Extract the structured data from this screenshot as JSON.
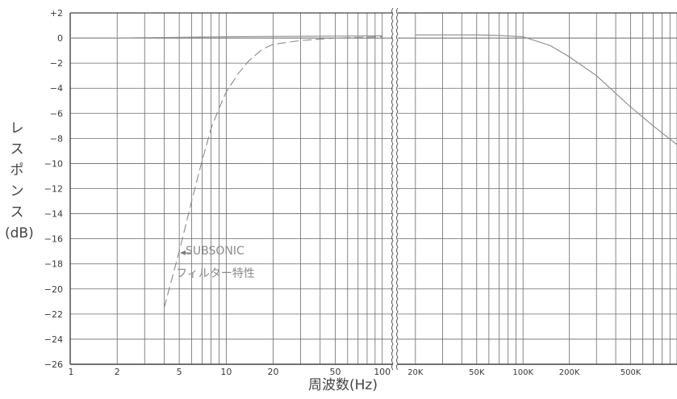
{
  "chart_data": {
    "type": "line",
    "ylabel": "レスポンス(dB)",
    "ylabel_lines": [
      "レ",
      "ス",
      "ポ",
      "ン",
      "ス",
      "(dB)"
    ],
    "xlabel": "周波数(Hz)",
    "x_scale": "log (broken axis: 1–100 Hz, then 20K–1M Hz)",
    "ylim": [
      -26,
      2
    ],
    "grid": true,
    "yticks": [
      2,
      0,
      -2,
      -4,
      -6,
      -8,
      -10,
      -12,
      -14,
      -16,
      -18,
      -20,
      -22,
      -24,
      -26
    ],
    "ytick_labels": [
      "+2",
      "0",
      "−2",
      "−4",
      "−6",
      "−8",
      "−10",
      "−12",
      "−14",
      "−16",
      "−18",
      "−20",
      "−22",
      "−24",
      "−26"
    ],
    "xticks_low": [
      1,
      2,
      5,
      10,
      20,
      50,
      100
    ],
    "xtick_labels_low": [
      "1",
      "2",
      "5",
      "10",
      "20",
      "50",
      "100"
    ],
    "xticks_high": [
      20000,
      50000,
      100000,
      200000,
      500000
    ],
    "xtick_labels_high": [
      "20K",
      "50K",
      "100K",
      "200K",
      "500K"
    ],
    "annotation": {
      "line1": "SUBSONIC",
      "line2": "フィルター特性"
    },
    "series": [
      {
        "style": "solid",
        "x": [
          1,
          2,
          5,
          10,
          20,
          50,
          100,
          20000,
          50000,
          70000,
          100000,
          150000,
          200000,
          300000,
          500000,
          700000,
          1000000
        ],
        "y": [
          0,
          0,
          0.05,
          0.1,
          0.12,
          0.15,
          0.18,
          0.25,
          0.25,
          0.2,
          0.1,
          -0.6,
          -1.5,
          -3,
          -5.5,
          -7,
          -8.5
        ]
      },
      {
        "style": "dashed",
        "x": [
          4,
          5,
          6,
          7,
          8,
          9,
          10,
          12,
          14,
          17,
          20,
          30,
          50,
          100
        ],
        "y": [
          -21.5,
          -17,
          -13,
          -9.8,
          -7.2,
          -5.6,
          -4.3,
          -2.8,
          -1.8,
          -0.9,
          -0.5,
          -0.2,
          0,
          0.1
        ]
      }
    ]
  }
}
